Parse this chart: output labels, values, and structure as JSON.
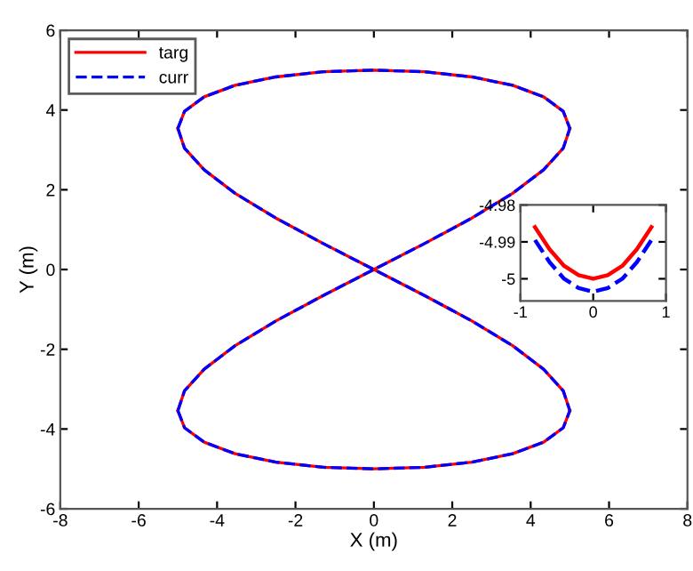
{
  "chart_data": [
    {
      "type": "line",
      "xlabel": "X (m)",
      "ylabel": "Y (m)",
      "x": [
        -5,
        -4.83,
        -4.33,
        -3.54,
        -2.5,
        -1.29,
        0,
        1.29,
        2.5,
        3.54,
        4.33,
        4.83,
        5
      ],
      "series": [
        {
          "name": "targ",
          "color": "#ff0000",
          "line_style": "solid",
          "values": [
            3.54,
            3.97,
            4.33,
            4.62,
            4.83,
            4.96,
            5,
            4.96,
            4.83,
            4.62,
            4.33,
            3.97,
            3.54
          ]
        },
        {
          "color": "#ff0000",
          "line_style": "solid",
          "values": [
            -3.54,
            -3.04,
            -2.5,
            -1.91,
            -1.29,
            -0.65,
            0,
            0.65,
            1.29,
            1.91,
            2.5,
            3.04,
            3.54
          ]
        },
        {
          "color": "#ff0000",
          "line_style": "solid",
          "values": [
            -3.54,
            -3.97,
            -4.33,
            -4.62,
            -4.83,
            -4.96,
            -5,
            -4.96,
            -4.83,
            -4.62,
            -4.33,
            -3.97,
            -3.54
          ]
        },
        {
          "color": "#ff0000",
          "line_style": "solid",
          "values": [
            3.54,
            3.04,
            2.5,
            1.91,
            1.29,
            0.65,
            0,
            -0.65,
            -1.29,
            -1.91,
            -2.5,
            -3.04,
            -3.54
          ]
        },
        {
          "name": "curr",
          "color": "#0000ff",
          "line_style": "dashed",
          "values": [
            3.54,
            3.97,
            4.33,
            4.62,
            4.83,
            4.96,
            5,
            4.96,
            4.83,
            4.62,
            4.33,
            3.97,
            3.54
          ]
        },
        {
          "color": "#0000ff",
          "line_style": "dashed",
          "values": [
            -3.54,
            -3.04,
            -2.5,
            -1.91,
            -1.29,
            -0.65,
            0,
            0.65,
            1.29,
            1.91,
            2.5,
            3.04,
            3.54
          ]
        },
        {
          "color": "#0000ff",
          "line_style": "dashed",
          "values": [
            -3.54,
            -3.97,
            -4.33,
            -4.62,
            -4.83,
            -4.96,
            -5,
            -4.96,
            -4.83,
            -4.62,
            -4.33,
            -3.97,
            -3.54
          ]
        },
        {
          "color": "#0000ff",
          "line_style": "dashed",
          "values": [
            3.54,
            3.04,
            2.5,
            1.91,
            1.29,
            0.65,
            0,
            -0.65,
            -1.29,
            -1.91,
            -2.5,
            -3.04,
            -3.54
          ]
        }
      ],
      "xlim": [
        -8,
        8
      ],
      "xticks": [
        -8,
        -6,
        -4,
        -2,
        0,
        2,
        4,
        6,
        8
      ],
      "ylim": [
        -6,
        6
      ],
      "yticks": [
        -6,
        -4,
        -2,
        0,
        2,
        4,
        6
      ],
      "grid": false,
      "legend": "top left",
      "marker": "none"
    },
    {
      "type": "line",
      "x": [
        -0.8,
        -0.6,
        -0.4,
        -0.2,
        0,
        0.2,
        0.4,
        0.6,
        0.8
      ],
      "series": [
        {
          "color": "#ff0000",
          "line_style": "solid",
          "values": [
            -4.986,
            -4.992,
            -4.9965,
            -4.999,
            -5,
            -4.999,
            -4.9965,
            -4.992,
            -4.986
          ]
        },
        {
          "color": "#0000ff",
          "line_style": "dashed",
          "values": [
            -4.9895,
            -4.9955,
            -5.0,
            -5.0025,
            -5.0035,
            -5.0025,
            -5.0,
            -4.9955,
            -4.9895
          ]
        }
      ],
      "xlim": [
        -1,
        1
      ],
      "xticks": [
        -1,
        0,
        1
      ],
      "ylim": [
        -5.006,
        -4.98
      ],
      "yticks": [
        -4.98,
        -4.99,
        -5
      ],
      "grid": false,
      "legend": false,
      "marker": "none"
    }
  ]
}
